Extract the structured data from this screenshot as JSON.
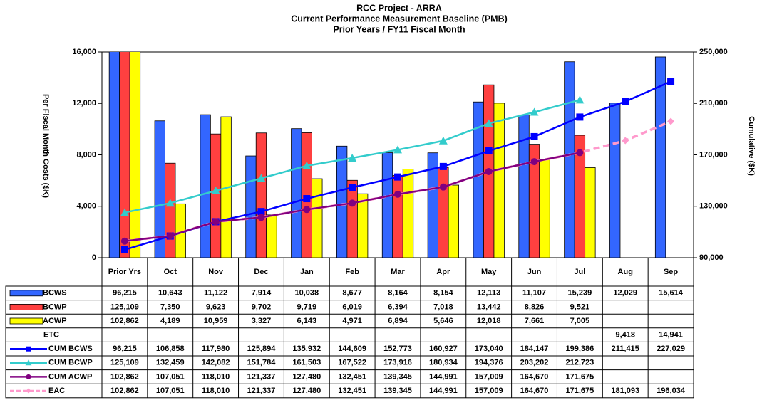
{
  "chart_data": {
    "type": "bar",
    "title": [
      "RCC Project  -  ARRA",
      "Current Performance Measurement Baseline (PMB)",
      "Prior Years / FY11 Fiscal Month"
    ],
    "y_label": "Per Fiscal Month Costs ($K)",
    "y2_label": "Cumulative ($K)",
    "categories": [
      "Prior Yrs",
      "Oct",
      "Nov",
      "Dec",
      "Jan",
      "Feb",
      "Mar",
      "Apr",
      "May",
      "Jun",
      "Jul",
      "Aug",
      "Sep"
    ],
    "ylim": [
      0,
      16000
    ],
    "yticks": [
      {
        "value": 0,
        "label": "0"
      },
      {
        "value": 4000,
        "label": "4,000"
      },
      {
        "value": 8000,
        "label": "8,000"
      },
      {
        "value": 12000,
        "label": "12,000"
      },
      {
        "value": 16000,
        "label": "16,000"
      }
    ],
    "y2lim": [
      90000,
      250000
    ],
    "y2ticks": [
      {
        "value": 90000,
        "label": "90,000"
      },
      {
        "value": 130000,
        "label": "130,000"
      },
      {
        "value": 170000,
        "label": "170,000"
      },
      {
        "value": 210000,
        "label": "210,000"
      },
      {
        "value": 250000,
        "label": "250,000"
      }
    ],
    "series": [
      {
        "name": "BCWS",
        "kind": "bar",
        "color": "#3366ff",
        "values": [
          96215,
          10643,
          11122,
          7914,
          10038,
          8677,
          8164,
          8154,
          12113,
          11107,
          15239,
          12029,
          15614
        ],
        "value_labels": [
          "96,215",
          "10,643",
          "11,122",
          "7,914",
          "10,038",
          "8,677",
          "8,164",
          "8,154",
          "12,113",
          "11,107",
          "15,239",
          "12,029",
          "15,614"
        ]
      },
      {
        "name": "BCWP",
        "kind": "bar",
        "color": "#ff4040",
        "values": [
          125109,
          7350,
          9623,
          9702,
          9719,
          6019,
          6394,
          7018,
          13442,
          8826,
          9521,
          null,
          null
        ],
        "value_labels": [
          "125,109",
          "7,350",
          "9,623",
          "9,702",
          "9,719",
          "6,019",
          "6,394",
          "7,018",
          "13,442",
          "8,826",
          "9,521",
          null,
          null
        ]
      },
      {
        "name": "ACWP",
        "kind": "bar",
        "color": "#ffff00",
        "values": [
          102862,
          4189,
          10959,
          3327,
          6143,
          4971,
          6894,
          5646,
          12018,
          7661,
          7005,
          null,
          null
        ],
        "value_labels": [
          "102,862",
          "4,189",
          "10,959",
          "3,327",
          "6,143",
          "4,971",
          "6,894",
          "5,646",
          "12,018",
          "7,661",
          "7,005",
          null,
          null
        ]
      },
      {
        "name": "ETC",
        "kind": "none",
        "values": [
          null,
          null,
          null,
          null,
          null,
          null,
          null,
          null,
          null,
          null,
          null,
          9418,
          14941
        ],
        "value_labels": [
          null,
          null,
          null,
          null,
          null,
          null,
          null,
          null,
          null,
          null,
          null,
          "9,418",
          "14,941"
        ]
      },
      {
        "name": "CUM BCWS",
        "kind": "line",
        "axis": "y2",
        "marker": "square",
        "color": "#0000ff",
        "values": [
          96215,
          106858,
          117980,
          125894,
          135932,
          144609,
          152773,
          160927,
          173040,
          184147,
          199386,
          211415,
          227029
        ],
        "value_labels": [
          "96,215",
          "106,858",
          "117,980",
          "125,894",
          "135,932",
          "144,609",
          "152,773",
          "160,927",
          "173,040",
          "184,147",
          "199,386",
          "211,415",
          "227,029"
        ]
      },
      {
        "name": "CUM BCWP",
        "kind": "line",
        "axis": "y2",
        "marker": "triangle",
        "color": "#33cccc",
        "values": [
          125109,
          132459,
          142082,
          151784,
          161503,
          167522,
          173916,
          180934,
          194376,
          203202,
          212723,
          null,
          null
        ],
        "value_labels": [
          "125,109",
          "132,459",
          "142,082",
          "151,784",
          "161,503",
          "167,522",
          "173,916",
          "180,934",
          "194,376",
          "203,202",
          "212,723",
          null,
          null
        ]
      },
      {
        "name": "CUM ACWP",
        "kind": "line",
        "axis": "y2",
        "marker": "circle",
        "color": "#800080",
        "values": [
          102862,
          107051,
          118010,
          121337,
          127480,
          132451,
          139345,
          144991,
          157009,
          164670,
          171675,
          null,
          null
        ],
        "value_labels": [
          "102,862",
          "107,051",
          "118,010",
          "121,337",
          "127,480",
          "132,451",
          "139,345",
          "144,991",
          "157,009",
          "164,670",
          "171,675",
          null,
          null
        ]
      },
      {
        "name": "EAC",
        "kind": "line",
        "axis": "y2",
        "marker": "diamond",
        "dashed": true,
        "color": "#ff99cc",
        "values": [
          102862,
          107051,
          118010,
          121337,
          127480,
          132451,
          139345,
          144991,
          157009,
          164670,
          171675,
          181093,
          196034
        ],
        "value_labels": [
          "102,862",
          "107,051",
          "118,010",
          "121,337",
          "127,480",
          "132,451",
          "139,345",
          "144,991",
          "157,009",
          "164,670",
          "171,675",
          "181,093",
          "196,034"
        ]
      }
    ]
  }
}
